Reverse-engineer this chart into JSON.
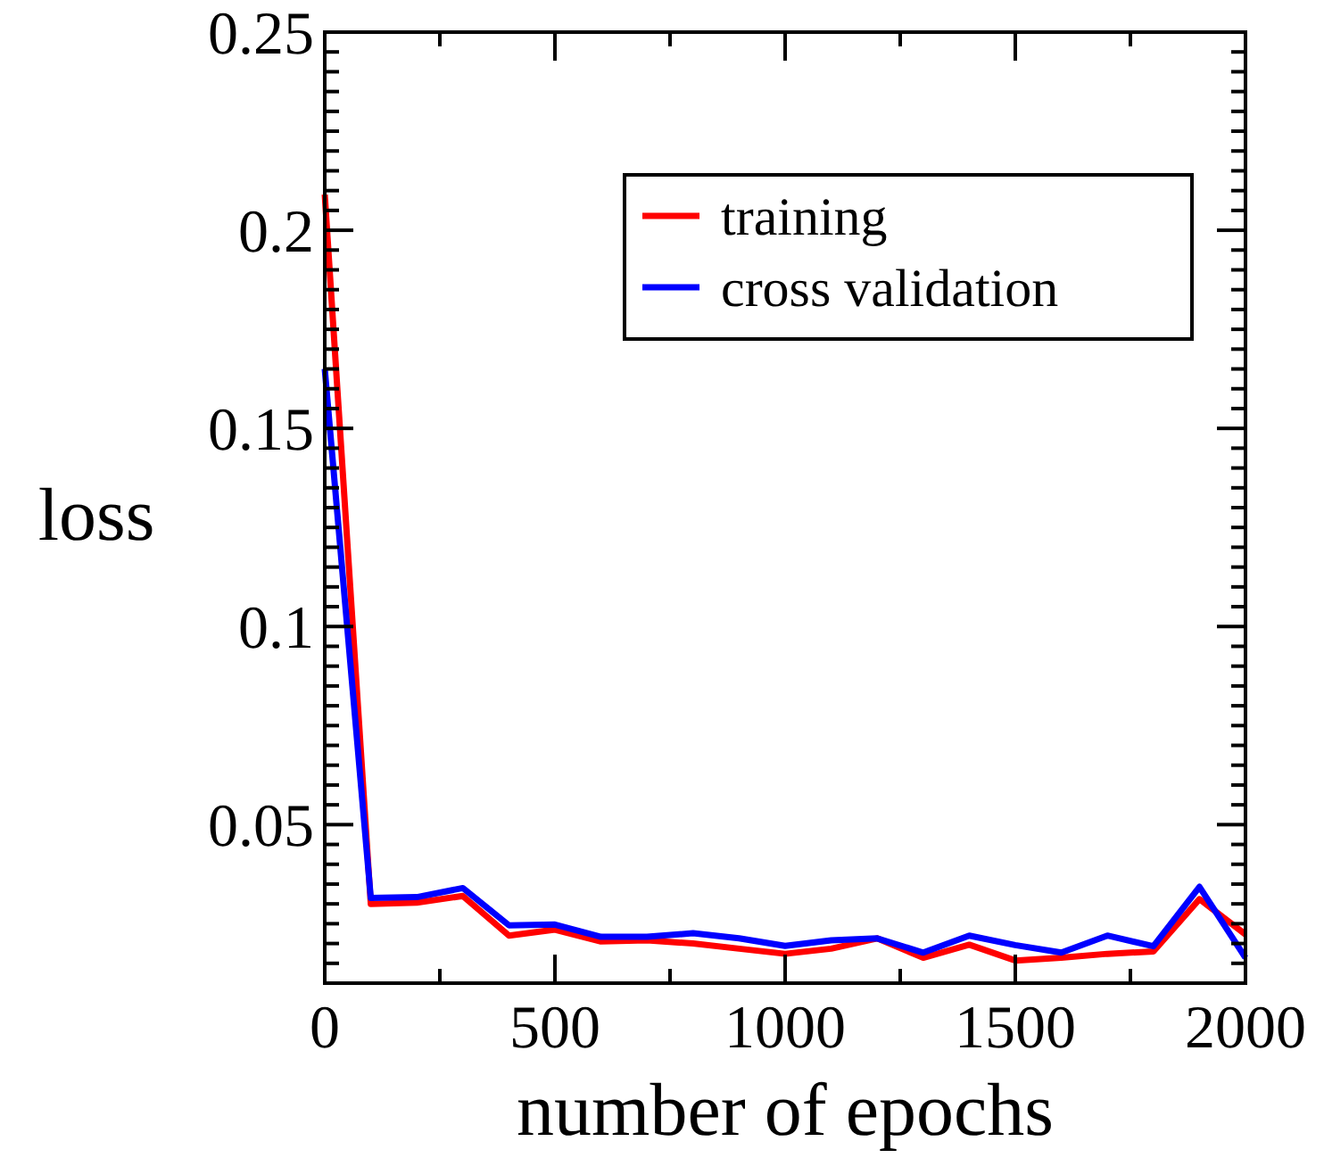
{
  "chart_data": {
    "type": "line",
    "xlabel": "number of epochs",
    "ylabel": "loss",
    "x": [
      0,
      100,
      200,
      300,
      400,
      500,
      600,
      700,
      800,
      900,
      1000,
      1100,
      1200,
      1300,
      1400,
      1500,
      1600,
      1700,
      1800,
      1900,
      2000
    ],
    "series": [
      {
        "name": "training",
        "color": "#ff0000",
        "values": [
          0.209,
          0.03,
          0.0303,
          0.032,
          0.022,
          0.0235,
          0.0205,
          0.0208,
          0.02,
          0.0187,
          0.0174,
          0.0187,
          0.0213,
          0.0164,
          0.0197,
          0.0157,
          0.0164,
          0.0174,
          0.018,
          0.0312,
          0.0223
        ]
      },
      {
        "name": "cross validation",
        "color": "#0000ff",
        "values": [
          0.165,
          0.0315,
          0.0317,
          0.034,
          0.0246,
          0.0248,
          0.0217,
          0.0217,
          0.0226,
          0.0213,
          0.0194,
          0.0208,
          0.0213,
          0.0177,
          0.022,
          0.0196,
          0.0177,
          0.022,
          0.0193,
          0.0343,
          0.0164
        ]
      }
    ],
    "xlim": [
      0,
      2000
    ],
    "xticks": [
      0,
      {
        "value": 250,
        "label": null
      },
      500,
      {
        "value": 750,
        "label": null
      },
      1000,
      {
        "value": 1250,
        "label": null
      },
      1500,
      {
        "value": 1750,
        "label": null
      },
      2000
    ],
    "ylim": [
      0.01,
      0.25
    ],
    "yticks": [
      {
        "value": 0.01,
        "label": null
      },
      {
        "value": 0.015,
        "label": null
      },
      {
        "value": 0.02,
        "label": null
      },
      {
        "value": 0.025,
        "label": null
      },
      {
        "value": 0.03,
        "label": null
      },
      {
        "value": 0.035,
        "label": null
      },
      {
        "value": 0.04,
        "label": null
      },
      {
        "value": 0.045,
        "label": null
      },
      0.05,
      {
        "value": 0.055,
        "label": null
      },
      {
        "value": 0.06,
        "label": null
      },
      {
        "value": 0.065,
        "label": null
      },
      {
        "value": 0.07,
        "label": null
      },
      {
        "value": 0.075,
        "label": null
      },
      {
        "value": 0.08,
        "label": null
      },
      {
        "value": 0.085,
        "label": null
      },
      {
        "value": 0.09,
        "label": null
      },
      {
        "value": 0.095,
        "label": null
      },
      0.1,
      {
        "value": 0.105,
        "label": null
      },
      {
        "value": 0.11,
        "label": null
      },
      {
        "value": 0.115,
        "label": null
      },
      {
        "value": 0.12,
        "label": null
      },
      {
        "value": 0.125,
        "label": null
      },
      {
        "value": 0.13,
        "label": null
      },
      {
        "value": 0.135,
        "label": null
      },
      {
        "value": 0.14,
        "label": null
      },
      {
        "value": 0.145,
        "label": null
      },
      0.15,
      {
        "value": 0.155,
        "label": null
      },
      {
        "value": 0.16,
        "label": null
      },
      {
        "value": 0.165,
        "label": null
      },
      {
        "value": 0.17,
        "label": null
      },
      {
        "value": 0.175,
        "label": null
      },
      {
        "value": 0.18,
        "label": null
      },
      {
        "value": 0.185,
        "label": null
      },
      {
        "value": 0.19,
        "label": null
      },
      {
        "value": 0.195,
        "label": null
      },
      0.2,
      {
        "value": 0.205,
        "label": null
      },
      {
        "value": 0.21,
        "label": null
      },
      {
        "value": 0.215,
        "label": null
      },
      {
        "value": 0.22,
        "label": null
      },
      {
        "value": 0.225,
        "label": null
      },
      {
        "value": 0.23,
        "label": null
      },
      {
        "value": 0.235,
        "label": null
      },
      {
        "value": 0.24,
        "label": null
      },
      {
        "value": 0.245,
        "label": null
      },
      0.25
    ],
    "grid": false,
    "legend": "top right",
    "marker": "none",
    "line_style": "solid"
  }
}
